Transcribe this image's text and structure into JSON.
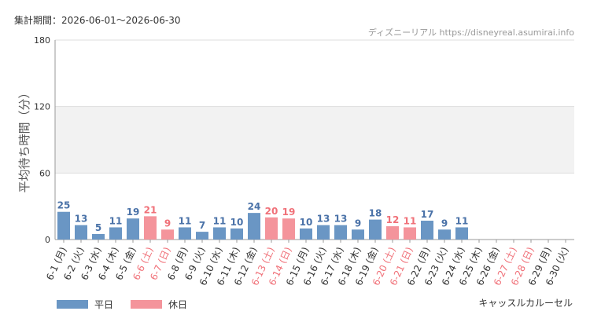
{
  "header": {
    "period_label": "集計期間：2026-06-01～2026-06-30",
    "site_label": "ディズニーリアル https://disneyreal.asumirai.info"
  },
  "footer": {
    "attraction_name": "キャッスルカルーセル"
  },
  "legend": {
    "weekday_label": "平日",
    "holiday_label": "休日"
  },
  "colors": {
    "weekday": "#6a96c4",
    "holiday": "#f4949b",
    "weekday_text": "#4a72a8",
    "holiday_text": "#f07078",
    "band": "#f2f2f2"
  },
  "chart_data": {
    "type": "bar",
    "ylabel": "平均待ち時間（分）",
    "ylim": [
      0,
      180
    ],
    "yticks": [
      0,
      60,
      120,
      180
    ],
    "shaded_band": [
      60,
      120
    ],
    "categories": [
      "6-1 (月)",
      "6-2 (火)",
      "6-3 (水)",
      "6-4 (木)",
      "6-5 (金)",
      "6-6 (土)",
      "6-7 (日)",
      "6-8 (月)",
      "6-9 (火)",
      "6-10 (水)",
      "6-11 (木)",
      "6-12 (金)",
      "6-13 (土)",
      "6-14 (日)",
      "6-15 (月)",
      "6-16 (火)",
      "6-17 (水)",
      "6-18 (木)",
      "6-19 (金)",
      "6-20 (土)",
      "6-21 (日)",
      "6-22 (月)",
      "6-23 (火)",
      "6-24 (水)",
      "6-25 (木)",
      "6-26 (金)",
      "6-27 (土)",
      "6-28 (日)",
      "6-29 (月)",
      "6-30 (火)"
    ],
    "values": [
      25,
      13,
      5,
      11,
      19,
      21,
      9,
      11,
      7,
      11,
      10,
      24,
      20,
      19,
      10,
      13,
      13,
      9,
      18,
      12,
      11,
      17,
      9,
      11,
      null,
      null,
      null,
      null,
      null,
      null
    ],
    "day_type": [
      "weekday",
      "weekday",
      "weekday",
      "weekday",
      "weekday",
      "holiday",
      "holiday",
      "weekday",
      "weekday",
      "weekday",
      "weekday",
      "weekday",
      "holiday",
      "holiday",
      "weekday",
      "weekday",
      "weekday",
      "weekday",
      "weekday",
      "holiday",
      "holiday",
      "weekday",
      "weekday",
      "weekday",
      "weekday",
      "weekday",
      "holiday",
      "holiday",
      "weekday",
      "weekday"
    ]
  }
}
